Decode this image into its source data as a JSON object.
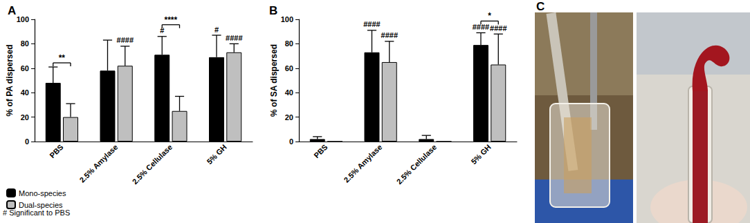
{
  "chart_data": [
    {
      "type": "bar",
      "title": "A",
      "y_label": "% of PA dispersed",
      "categories": [
        "PBS",
        "2.5% Amylase",
        "2.5% Cellulase",
        "5% GH"
      ],
      "series": [
        {
          "name": "Mono-species",
          "color": "#000000",
          "values": [
            48,
            58,
            71,
            69
          ],
          "errors": [
            13,
            25,
            15,
            18
          ]
        },
        {
          "name": "Dual-species",
          "color": "#bfbfbf",
          "values": [
            20,
            62,
            25,
            73
          ],
          "errors": [
            11,
            16,
            12,
            7
          ]
        }
      ],
      "ylim": [
        0,
        100
      ],
      "yticks": [
        0,
        20,
        40,
        60,
        80,
        100
      ],
      "grid": false,
      "legend": "bottom-left",
      "note": "# Significant to PBS",
      "annotations": [
        {
          "category": "2.5% Amylase",
          "series": "Dual-species",
          "text": "####"
        },
        {
          "category": "2.5% Cellulase",
          "series": "Mono-species",
          "text": "#"
        },
        {
          "category": "5% GH",
          "series": "Mono-species",
          "text": "#"
        },
        {
          "category": "5% GH",
          "series": "Dual-species",
          "text": "####"
        }
      ],
      "brackets": [
        {
          "category": "PBS",
          "text": "**"
        },
        {
          "category": "2.5% Cellulase",
          "text": "****"
        }
      ]
    },
    {
      "type": "bar",
      "title": "B",
      "y_label": "% of SA dispersed",
      "categories": [
        "PBS",
        "2.5% Amylase",
        "2.5% Cellulase",
        "5% GH"
      ],
      "series": [
        {
          "name": "Mono-species",
          "color": "#000000",
          "values": [
            2,
            73,
            2,
            79
          ],
          "errors": [
            2,
            18,
            3,
            10
          ]
        },
        {
          "name": "Dual-species",
          "color": "#bfbfbf",
          "values": [
            0,
            65,
            0,
            63
          ],
          "errors": [
            0,
            17,
            0,
            25
          ]
        }
      ],
      "ylim": [
        0,
        100
      ],
      "yticks": [
        0,
        20,
        40,
        60,
        80,
        100
      ],
      "grid": false,
      "annotations": [
        {
          "category": "2.5% Amylase",
          "series": "Mono-species",
          "text": "####"
        },
        {
          "category": "2.5% Amylase",
          "series": "Dual-species",
          "text": "####"
        },
        {
          "category": "5% GH",
          "series": "Mono-species",
          "text": "####"
        },
        {
          "category": "5% GH",
          "series": "Dual-species",
          "text": "####"
        }
      ],
      "brackets": [
        {
          "category": "5% GH",
          "text": "*"
        }
      ]
    }
  ],
  "image": {
    "label": "C"
  }
}
